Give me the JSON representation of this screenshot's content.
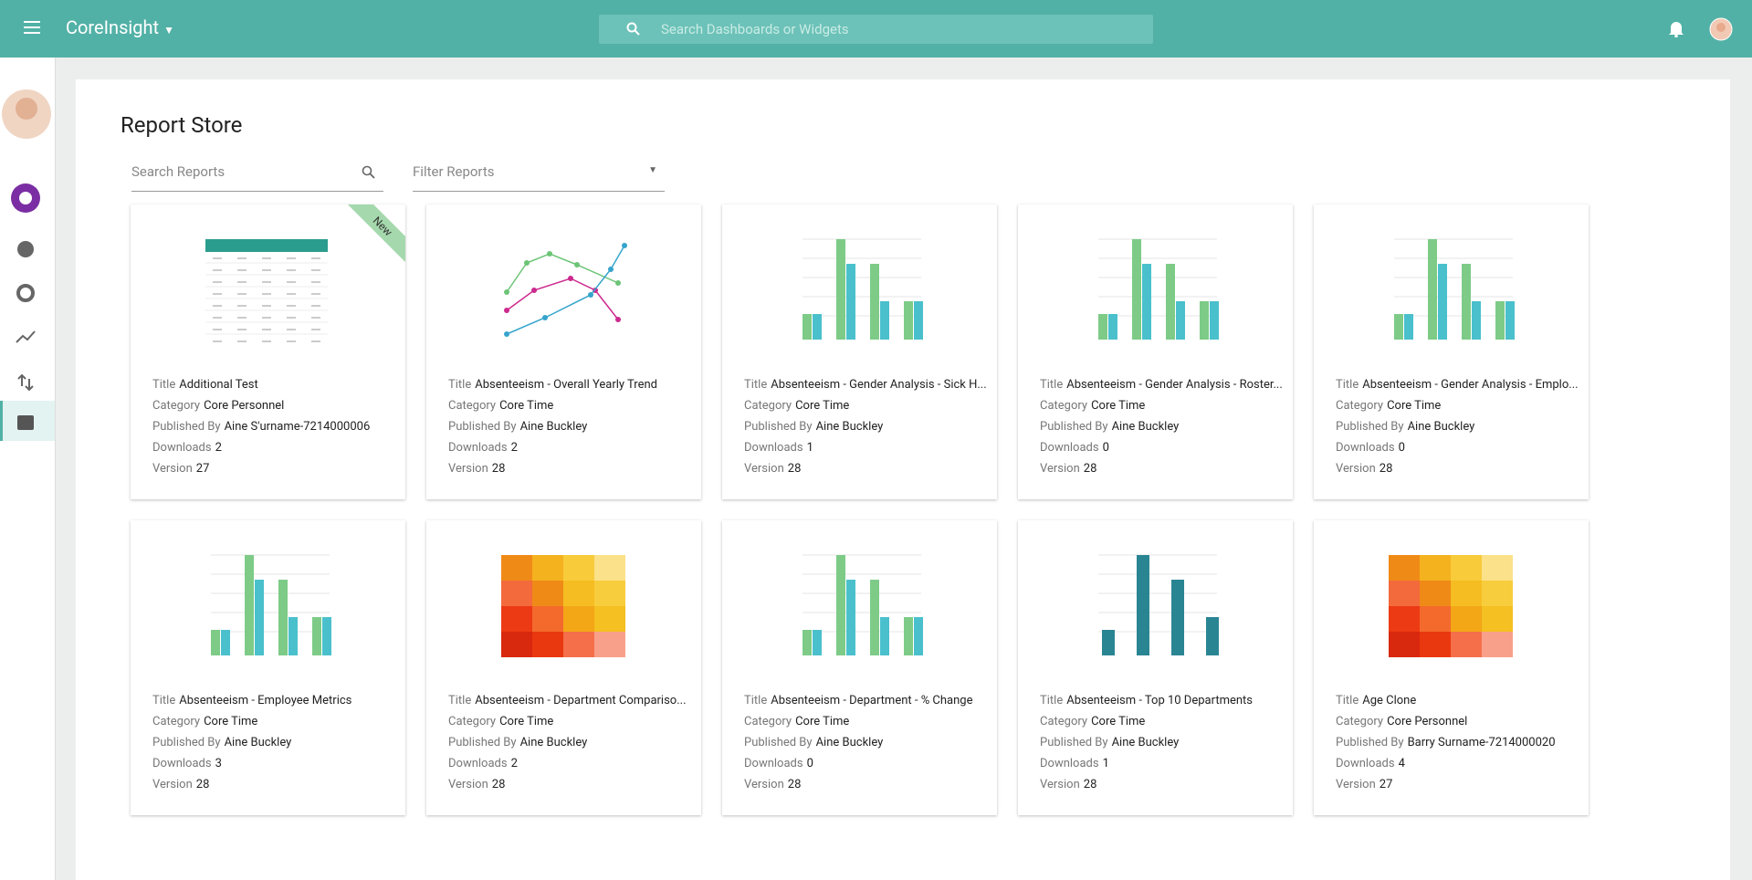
{
  "header": {
    "brand": "CoreInsight",
    "search_placeholder": "Search Dashboards or Widgets"
  },
  "page": {
    "title": "Report Store",
    "search_placeholder": "Search Reports",
    "filter_placeholder": "Filter Reports"
  },
  "field_labels": {
    "title": "Title",
    "category": "Category",
    "published_by": "Published By",
    "downloads": "Downloads",
    "version": "Version"
  },
  "reports": [
    {
      "thumbnail": "table",
      "badge": "New",
      "title": "Additional Test",
      "category": "Core Personnel",
      "published_by": "Aine S'urname-7214000006",
      "downloads": 2,
      "version": 27
    },
    {
      "thumbnail": "line",
      "title": "Absenteeism - Overall Yearly Trend",
      "category": "Core Time",
      "published_by": "Aine Buckley",
      "downloads": 2,
      "version": 28
    },
    {
      "thumbnail": "bar",
      "title": "Absenteeism - Gender Analysis - Sick H...",
      "category": "Core Time",
      "published_by": "Aine Buckley",
      "downloads": 1,
      "version": 28
    },
    {
      "thumbnail": "bar",
      "title": "Absenteeism - Gender Analysis - Roster...",
      "category": "Core Time",
      "published_by": "Aine Buckley",
      "downloads": 0,
      "version": 28
    },
    {
      "thumbnail": "bar",
      "title": "Absenteeism - Gender Analysis - Emplo...",
      "category": "Core Time",
      "published_by": "Aine Buckley",
      "downloads": 0,
      "version": 28
    },
    {
      "thumbnail": "bar",
      "title": "Absenteeism - Employee Metrics",
      "category": "Core Time",
      "published_by": "Aine Buckley",
      "downloads": 3,
      "version": 28
    },
    {
      "thumbnail": "heatmap",
      "title": "Absenteeism - Department Compariso...",
      "category": "Core Time",
      "published_by": "Aine Buckley",
      "downloads": 2,
      "version": 28
    },
    {
      "thumbnail": "bar",
      "title": "Absenteeism - Department - % Change",
      "category": "Core Time",
      "published_by": "Aine Buckley",
      "downloads": 0,
      "version": 28
    },
    {
      "thumbnail": "bar-dark",
      "title": "Absenteeism - Top 10 Departments",
      "category": "Core Time",
      "published_by": "Aine Buckley",
      "downloads": 1,
      "version": 28
    },
    {
      "thumbnail": "heatmap",
      "title": "Age Clone",
      "category": "Core Personnel",
      "published_by": "Barry Surname-7214000020",
      "downloads": 4,
      "version": 27
    }
  ]
}
